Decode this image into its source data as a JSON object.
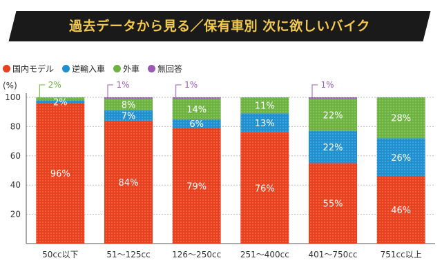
{
  "title": "過去データから見る／保有車別 次に欲しいバイク",
  "chart_data": {
    "type": "bar",
    "stacked": true,
    "percent_stacked": true,
    "title": "過去データから見る／保有車別 次に欲しいバイク",
    "ylabel": "(%)",
    "ylim": [
      0,
      100
    ],
    "yticks": [
      20,
      40,
      60,
      80,
      100
    ],
    "grid": true,
    "legend_position": "top-left",
    "categories": [
      "50cc以下",
      "51〜125cc",
      "126〜250cc",
      "251〜400cc",
      "401〜750cc",
      "751cc以上"
    ],
    "series": [
      {
        "name": "国内モデル",
        "color": "#e8401c",
        "values": [
          96,
          84,
          79,
          76,
          55,
          46
        ],
        "labels": [
          "96%",
          "84%",
          "79%",
          "76%",
          "55%",
          "46%"
        ]
      },
      {
        "name": "逆輸入車",
        "color": "#1e8fcf",
        "values": [
          2,
          7,
          6,
          13,
          22,
          26
        ],
        "labels": [
          "2%",
          "7%",
          "6%",
          "13%",
          "22%",
          "26%"
        ]
      },
      {
        "name": "外車",
        "color": "#6db33f",
        "values": [
          2,
          8,
          14,
          11,
          22,
          28
        ],
        "labels": [
          "2%",
          "8%",
          "14%",
          "11%",
          "22%",
          "28%"
        ]
      },
      {
        "name": "無回答",
        "color": "#9b59b6",
        "values": [
          0,
          1,
          1,
          0,
          1,
          0
        ],
        "labels": [
          "",
          "1%",
          "1%",
          "",
          "1%",
          ""
        ]
      }
    ]
  }
}
